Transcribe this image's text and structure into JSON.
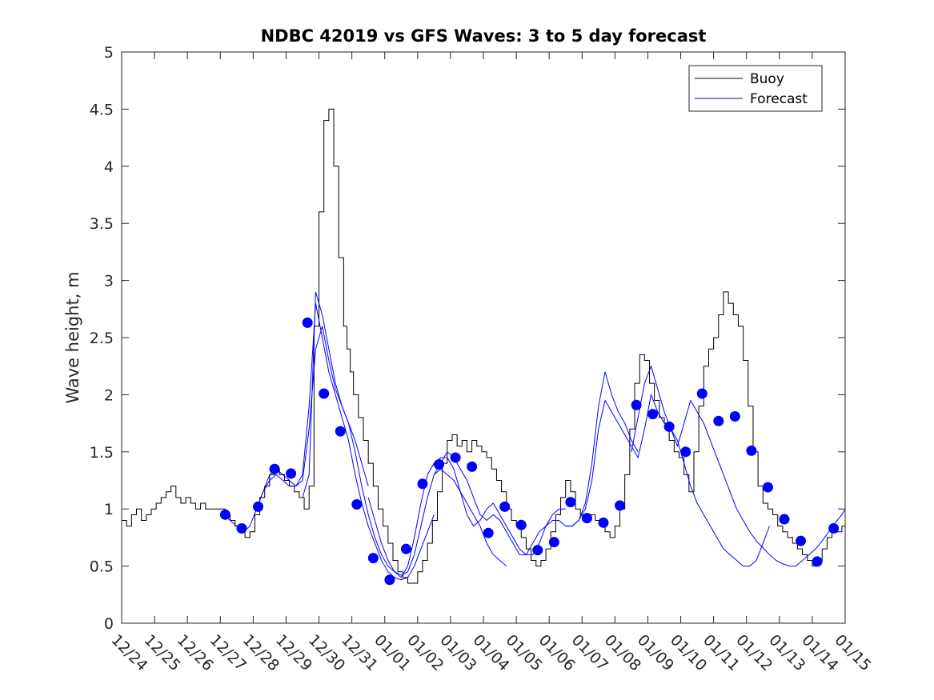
{
  "chart_data": {
    "type": "line",
    "title": "NDBC 42019 vs GFS Waves: 3 to 5 day forecast",
    "xlabel": "",
    "ylabel": "Wave height, m",
    "xlim": [
      0,
      22
    ],
    "ylim": [
      0,
      5
    ],
    "yticks": [
      0,
      0.5,
      1,
      1.5,
      2,
      2.5,
      3,
      3.5,
      4,
      4.5,
      5
    ],
    "ytick_labels": [
      "0",
      "0.5",
      "1",
      "1.5",
      "2",
      "2.5",
      "3",
      "3.5",
      "4",
      "4.5",
      "5"
    ],
    "xtick_labels": [
      "12/24",
      "12/25",
      "12/26",
      "12/27",
      "12/28",
      "12/29",
      "12/30",
      "12/31",
      "01/01",
      "01/02",
      "01/03",
      "01/04",
      "01/05",
      "01/06",
      "01/07",
      "01/08",
      "01/09",
      "01/10",
      "01/11",
      "01/12",
      "01/13",
      "01/14",
      "01/15"
    ],
    "legend": {
      "location": "top-right",
      "entries": [
        "Buoy",
        "Forecast"
      ]
    },
    "colors": {
      "buoy": "#000000",
      "forecast": "#0000ff"
    },
    "series": [
      {
        "name": "Buoy",
        "color": "#000000",
        "x": [
          0,
          0.15,
          0.3,
          0.45,
          0.6,
          0.75,
          0.9,
          1.05,
          1.2,
          1.35,
          1.5,
          1.65,
          1.8,
          1.95,
          2.1,
          2.25,
          2.4,
          2.55,
          2.7,
          2.85,
          3.0,
          3.15,
          3.3,
          3.45,
          3.6,
          3.75,
          3.9,
          4.05,
          4.2,
          4.35,
          4.5,
          4.65,
          4.8,
          4.95,
          5.1,
          5.25,
          5.4,
          5.55,
          5.7,
          5.85,
          6.0,
          6.15,
          6.3,
          6.45,
          6.6,
          6.75,
          6.85,
          6.95,
          7.05,
          7.2,
          7.35,
          7.5,
          7.65,
          7.8,
          7.95,
          8.1,
          8.25,
          8.4,
          8.55,
          8.7,
          8.85,
          9.0,
          9.15,
          9.3,
          9.45,
          9.6,
          9.75,
          9.9,
          10.05,
          10.2,
          10.35,
          10.5,
          10.65,
          10.8,
          10.95,
          11.1,
          11.25,
          11.4,
          11.55,
          11.7,
          11.85,
          12.0,
          12.15,
          12.3,
          12.45,
          12.6,
          12.75,
          12.9,
          13.05,
          13.2,
          13.35,
          13.5,
          13.65,
          13.8,
          13.95,
          14.1,
          14.25,
          14.4,
          14.55,
          14.7,
          14.85,
          15.0,
          15.15,
          15.3,
          15.45,
          15.6,
          15.75,
          15.9,
          16.05,
          16.2,
          16.35,
          16.5,
          16.65,
          16.8,
          16.95,
          17.1,
          17.25,
          17.4,
          17.55,
          17.7,
          17.85,
          18.0,
          18.15,
          18.3,
          18.45,
          18.6,
          18.75,
          18.9,
          19.05,
          19.2,
          19.35,
          19.5,
          19.65,
          19.8,
          19.95,
          20.1,
          20.25,
          20.4,
          20.55,
          20.7,
          20.85,
          21.0,
          21.15,
          21.3,
          21.45,
          21.6,
          21.75,
          21.9,
          22.0
        ],
        "y": [
          0.9,
          0.85,
          0.95,
          1.0,
          0.9,
          0.95,
          1.0,
          1.05,
          1.1,
          1.15,
          1.2,
          1.1,
          1.05,
          1.1,
          1.05,
          1.0,
          1.05,
          1.0,
          1.0,
          1.0,
          1.0,
          0.95,
          0.9,
          0.85,
          0.8,
          0.75,
          0.8,
          0.95,
          1.1,
          1.2,
          1.3,
          1.35,
          1.3,
          1.25,
          1.2,
          1.15,
          1.1,
          1.0,
          1.2,
          2.6,
          3.6,
          4.4,
          4.5,
          4.0,
          3.2,
          2.6,
          2.4,
          2.2,
          2.0,
          1.8,
          1.6,
          1.4,
          1.2,
          1.0,
          0.85,
          0.7,
          0.55,
          0.45,
          0.4,
          0.35,
          0.35,
          0.45,
          0.55,
          0.7,
          0.9,
          1.15,
          1.4,
          1.6,
          1.65,
          1.55,
          1.6,
          1.5,
          1.6,
          1.55,
          1.5,
          1.45,
          1.35,
          1.25,
          1.15,
          1.0,
          0.9,
          0.85,
          0.75,
          0.65,
          0.55,
          0.5,
          0.55,
          0.65,
          0.8,
          0.95,
          1.1,
          1.25,
          1.15,
          1.0,
          0.95,
          0.9,
          0.95,
          0.9,
          0.9,
          0.8,
          0.75,
          0.85,
          1.0,
          1.3,
          1.7,
          2.1,
          2.35,
          2.3,
          2.1,
          1.95,
          1.8,
          1.75,
          1.6,
          1.5,
          1.45,
          1.3,
          1.15,
          1.5,
          1.9,
          2.25,
          2.4,
          2.5,
          2.7,
          2.9,
          2.8,
          2.7,
          2.6,
          2.3,
          1.9,
          1.5,
          1.2,
          1.05,
          1.0,
          0.95,
          0.85,
          0.8,
          0.75,
          0.7,
          0.65,
          0.6,
          0.55,
          0.5,
          0.55,
          0.65,
          0.75,
          0.8,
          0.8,
          0.85,
          0.85
        ]
      },
      {
        "name": "Forecast",
        "color": "#0000ff",
        "runs": [
          {
            "x": [
              3.1,
              3.3,
              3.5,
              3.7,
              3.9,
              4.1,
              4.3,
              4.5,
              4.7,
              4.9,
              5.1,
              5.3,
              5.5,
              5.7,
              5.9,
              6.1,
              6.3,
              6.5,
              6.7,
              6.9,
              7.1,
              7.3,
              7.5
            ],
            "y": [
              0.95,
              0.9,
              0.85,
              0.8,
              0.85,
              1.0,
              1.15,
              1.3,
              1.35,
              1.3,
              1.25,
              1.2,
              1.25,
              1.7,
              2.4,
              2.6,
              2.3,
              2.05,
              1.9,
              1.75,
              1.6,
              1.4,
              1.2
            ]
          },
          {
            "x": [
              4.1,
              4.3,
              4.5,
              4.7,
              4.9,
              5.1,
              5.3,
              5.5,
              5.7,
              5.9,
              6.1,
              6.3,
              6.5,
              6.7,
              6.9,
              7.1,
              7.3,
              7.5,
              7.7,
              7.9,
              8.1,
              8.3,
              8.5,
              8.7,
              8.9,
              9.1,
              9.3,
              9.5
            ],
            "y": [
              1.0,
              1.15,
              1.25,
              1.3,
              1.25,
              1.2,
              1.2,
              1.3,
              1.9,
              2.8,
              2.5,
              2.2,
              2.0,
              1.8,
              1.6,
              1.3,
              1.05,
              0.85,
              0.7,
              0.55,
              0.45,
              0.4,
              0.38,
              0.4,
              0.5,
              0.65,
              0.8,
              0.95
            ]
          },
          {
            "x": [
              5.5,
              5.7,
              5.9,
              6.1,
              6.3,
              6.5,
              6.7,
              6.9,
              7.1,
              7.3,
              7.5,
              7.7,
              7.9,
              8.1,
              8.3,
              8.5,
              8.7,
              8.9,
              9.1,
              9.3,
              9.5,
              9.7,
              9.9,
              10.1,
              10.3,
              10.5,
              10.7,
              10.9,
              11.1,
              11.3,
              11.5,
              11.7
            ],
            "y": [
              1.1,
              1.3,
              2.9,
              2.7,
              2.4,
              2.1,
              1.9,
              1.75,
              1.5,
              1.2,
              0.95,
              0.75,
              0.6,
              0.5,
              0.45,
              0.42,
              0.45,
              0.6,
              0.85,
              1.1,
              1.3,
              1.35,
              1.3,
              1.25,
              1.15,
              1.05,
              0.95,
              0.85,
              0.7,
              0.6,
              0.55,
              0.5
            ]
          },
          {
            "x": [
              7.5,
              7.7,
              7.9,
              8.1,
              8.3,
              8.5,
              8.7,
              8.9,
              9.1,
              9.3,
              9.5,
              9.7,
              9.9,
              10.1,
              10.3,
              10.5,
              10.7,
              10.9,
              11.1,
              11.3,
              11.5,
              11.7,
              11.9,
              12.1,
              12.3,
              12.5,
              12.7,
              12.9,
              13.1,
              13.3,
              13.5
            ],
            "y": [
              1.1,
              0.9,
              0.7,
              0.55,
              0.45,
              0.4,
              0.5,
              0.75,
              1.05,
              1.3,
              1.4,
              1.45,
              1.45,
              1.35,
              1.15,
              0.95,
              0.85,
              0.9,
              1.0,
              1.05,
              0.95,
              0.85,
              0.75,
              0.65,
              0.6,
              0.6,
              0.7,
              0.85,
              0.95,
              1.0,
              1.0
            ]
          },
          {
            "x": [
              9.5,
              9.7,
              9.9,
              10.1,
              10.3,
              10.5,
              10.7,
              10.9,
              11.1,
              11.3,
              11.5,
              11.7,
              11.9,
              12.1,
              12.3,
              12.5,
              12.7,
              12.9,
              13.1,
              13.3,
              13.5,
              13.7,
              13.9,
              14.1,
              14.3,
              14.5,
              14.7,
              14.9,
              15.1,
              15.3,
              15.5,
              15.7
            ],
            "y": [
              1.3,
              1.4,
              1.5,
              1.45,
              1.35,
              1.25,
              1.1,
              0.95,
              0.9,
              0.95,
              0.9,
              0.8,
              0.7,
              0.6,
              0.6,
              0.7,
              0.8,
              0.85,
              0.9,
              0.9,
              0.85,
              0.85,
              0.9,
              1.05,
              1.4,
              1.9,
              2.2,
              2.0,
              1.85,
              1.75,
              1.6,
              1.5
            ]
          },
          {
            "x": [
              13.5,
              13.7,
              13.9,
              14.1,
              14.3,
              14.5,
              14.7,
              14.9,
              15.1,
              15.3,
              15.5,
              15.7,
              15.9,
              16.1,
              16.3,
              16.5,
              16.7,
              16.9,
              17.1,
              17.3,
              17.5,
              17.7,
              17.9,
              18.1,
              18.3,
              18.5,
              18.7,
              18.9,
              19.1,
              19.3,
              19.5,
              19.7
            ],
            "y": [
              0.85,
              0.85,
              0.9,
              1.0,
              1.25,
              1.7,
              1.95,
              1.85,
              1.75,
              1.65,
              1.55,
              1.45,
              1.7,
              2.0,
              1.85,
              1.75,
              1.7,
              1.6,
              1.4,
              1.2,
              1.05,
              0.95,
              0.85,
              0.75,
              0.65,
              0.6,
              0.55,
              0.5,
              0.5,
              0.55,
              0.7,
              0.85
            ]
          },
          {
            "x": [
              15.5,
              15.7,
              15.9,
              16.1,
              16.3,
              16.5,
              16.7,
              16.9,
              17.1,
              17.3,
              17.5,
              17.7,
              17.9,
              18.1,
              18.3,
              18.5,
              18.7,
              18.9,
              19.1,
              19.3,
              19.5,
              19.7,
              19.9,
              20.1,
              20.3,
              20.5,
              20.7,
              20.9,
              21.1,
              21.3,
              21.5,
              21.7,
              21.9,
              22.0
            ],
            "y": [
              1.5,
              1.8,
              2.1,
              2.25,
              2.05,
              1.85,
              1.7,
              1.55,
              1.75,
              1.95,
              1.85,
              1.75,
              1.6,
              1.45,
              1.3,
              1.15,
              1.0,
              0.9,
              0.8,
              0.72,
              0.66,
              0.6,
              0.55,
              0.52,
              0.5,
              0.5,
              0.55,
              0.6,
              0.65,
              0.72,
              0.8,
              0.88,
              0.95,
              1.0
            ]
          }
        ],
        "markers": {
          "x": [
            3.15,
            3.65,
            4.15,
            4.65,
            5.15,
            5.65,
            6.15,
            6.65,
            7.15,
            7.65,
            8.15,
            8.65,
            9.15,
            9.65,
            10.15,
            10.65,
            11.15,
            11.65,
            12.15,
            12.65,
            13.15,
            13.65,
            14.15,
            14.65,
            15.15,
            15.65,
            16.15,
            16.65,
            17.15,
            17.65,
            18.15,
            18.65,
            19.15,
            19.65,
            20.15,
            20.65,
            21.15,
            21.65
          ],
          "y": [
            0.95,
            0.83,
            1.02,
            1.35,
            1.31,
            2.63,
            2.01,
            1.68,
            1.04,
            0.57,
            0.38,
            0.65,
            1.22,
            1.39,
            1.45,
            1.37,
            0.79,
            1.02,
            0.86,
            0.64,
            0.71,
            1.06,
            0.92,
            0.88,
            1.03,
            1.91,
            1.83,
            1.72,
            1.5,
            2.01,
            1.77,
            1.81,
            1.51,
            1.19,
            0.91,
            0.72,
            0.54,
            0.83
          ]
        }
      }
    ]
  }
}
